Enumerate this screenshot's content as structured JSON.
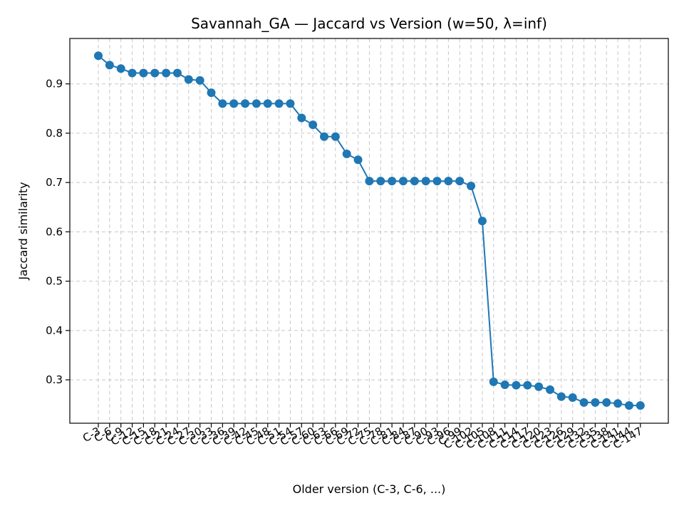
{
  "chart_data": {
    "type": "line",
    "title": "Savannah_GA — Jaccard vs Version (w=50, λ=inf)",
    "xlabel": "Older version (C-3, C-6, ...)",
    "ylabel": "Jaccard similarity",
    "ylim": [
      0.212,
      0.992
    ],
    "yticks": [
      0.3,
      0.4,
      0.5,
      0.6,
      0.7,
      0.8,
      0.9
    ],
    "grid": true,
    "color": "#1f77b4",
    "categories": [
      "C-3",
      "C-6",
      "C-9",
      "C-12",
      "C-15",
      "C-18",
      "C-21",
      "C-24",
      "C-27",
      "C-30",
      "C-33",
      "C-36",
      "C-39",
      "C-42",
      "C-45",
      "C-48",
      "C-51",
      "C-54",
      "C-57",
      "C-60",
      "C-63",
      "C-66",
      "C-69",
      "C-72",
      "C-75",
      "C-78",
      "C-81",
      "C-84",
      "C-87",
      "C-90",
      "C-93",
      "C-96",
      "C-99",
      "C-102",
      "C-105",
      "C-108",
      "C-111",
      "C-114",
      "C-117",
      "C-120",
      "C-123",
      "C-126",
      "C-129",
      "C-132",
      "C-135",
      "C-138",
      "C-141",
      "C-144",
      "C-147"
    ],
    "values": [
      0.957,
      0.938,
      0.931,
      0.922,
      0.922,
      0.922,
      0.922,
      0.922,
      0.909,
      0.907,
      0.882,
      0.86,
      0.86,
      0.86,
      0.86,
      0.86,
      0.86,
      0.86,
      0.831,
      0.817,
      0.793,
      0.793,
      0.758,
      0.746,
      0.703,
      0.703,
      0.703,
      0.703,
      0.703,
      0.703,
      0.703,
      0.703,
      0.703,
      0.693,
      0.622,
      0.296,
      0.29,
      0.289,
      0.289,
      0.286,
      0.28,
      0.266,
      0.264,
      0.254,
      0.254,
      0.254,
      0.252,
      0.248,
      0.248
    ]
  }
}
